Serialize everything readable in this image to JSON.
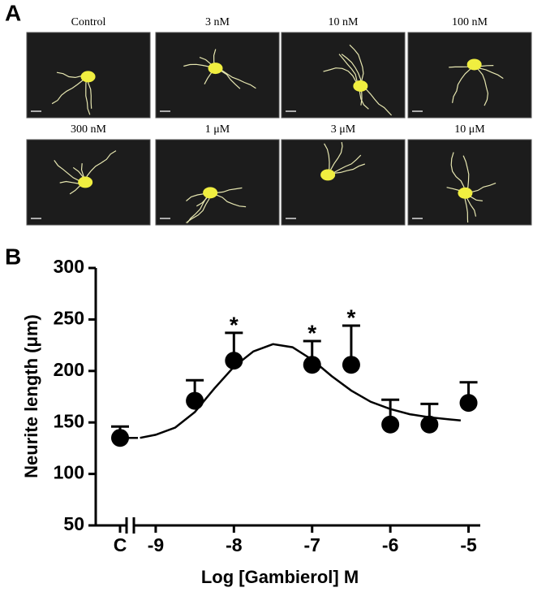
{
  "figure_panels": {
    "a": {
      "label": "A",
      "images": [
        "Control",
        "3 nM",
        "10 nM",
        "100 nM",
        "300 nM",
        "1 μM",
        "3 μM",
        "10 μM"
      ]
    },
    "b": {
      "label": "B"
    }
  },
  "chart_data": {
    "type": "scatter",
    "y_label": "Neurite length (μm)",
    "x_label": "Log [Gambierol] M",
    "ylim": [
      50,
      300
    ],
    "yticks": [
      50,
      100,
      150,
      200,
      250,
      300
    ],
    "xlim": [
      -9.3,
      -4.85
    ],
    "xticks": [
      -9,
      -8,
      -7,
      -6,
      -5
    ],
    "control": {
      "label": "C",
      "value": 135,
      "error": 11
    },
    "series": [
      {
        "color": "#000000",
        "x": [
          -8.5,
          -8,
          -7,
          -6.5,
          -6,
          -5.5,
          -5
        ],
        "values": [
          171,
          210,
          206,
          206,
          148,
          148,
          169
        ],
        "errors": [
          20,
          27,
          23,
          38,
          24,
          20,
          20
        ]
      }
    ],
    "fit": {
      "x": [
        -9.2,
        -9,
        -8.75,
        -8.5,
        -8.25,
        -8,
        -7.75,
        -7.5,
        -7.25,
        -7,
        -6.75,
        -6.5,
        -6.25,
        -6,
        -5.75,
        -5.5,
        -5.25,
        -5.1
      ],
      "y": [
        135,
        138,
        145,
        160,
        183,
        204,
        219,
        226,
        223,
        211,
        195,
        181,
        170,
        163,
        158,
        155,
        153,
        152
      ]
    },
    "annotations": [
      {
        "x": -8,
        "text": "*"
      },
      {
        "x": -7,
        "text": "*"
      },
      {
        "x": -6.5,
        "text": "*"
      }
    ]
  }
}
